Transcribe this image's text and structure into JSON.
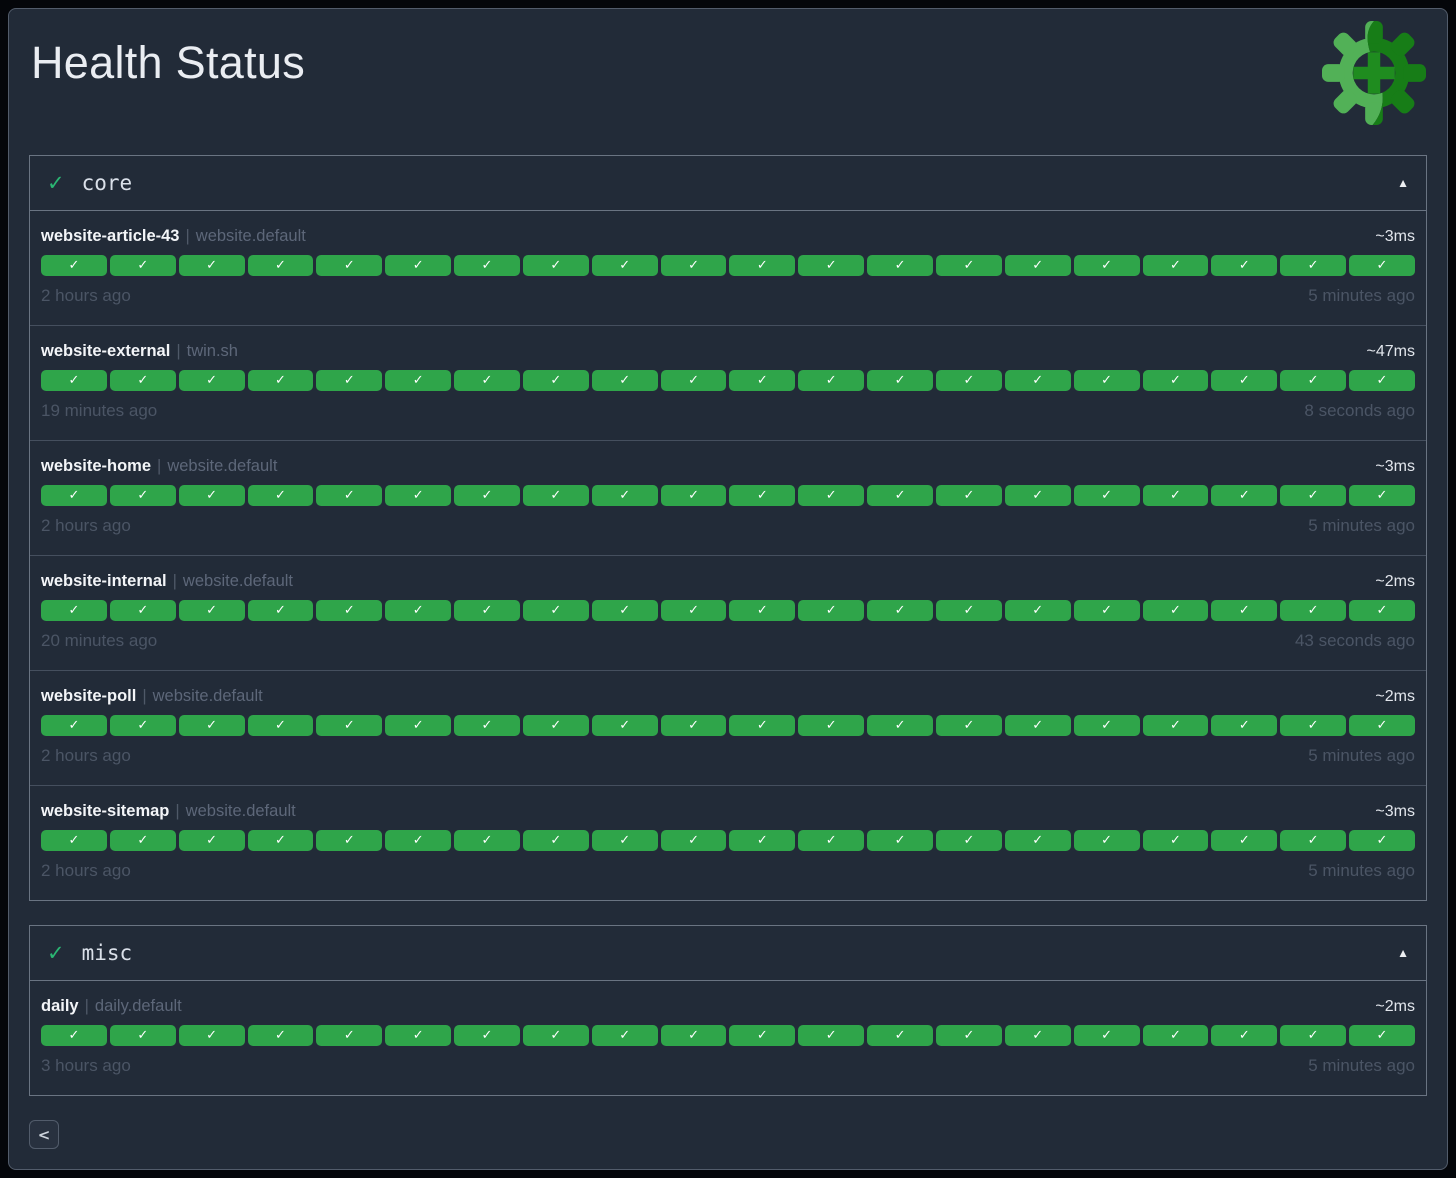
{
  "page": {
    "title": "Health Status"
  },
  "separator": "|",
  "colors": {
    "surface": "#222b38",
    "pill_green": "#2fa54a",
    "header_check_green": "#2bb673",
    "logo_light_green": "#52b157",
    "logo_dark_green": "#177d17",
    "logo_plus_green": "#1f8c1f"
  },
  "sections": [
    {
      "name": "core",
      "status_symbol": "✓",
      "collapse_symbol": "▲",
      "checks": [
        {
          "name": "website-article-43",
          "tag": "website.default",
          "duration": "~3ms",
          "oldest": "2 hours ago",
          "newest": "5 minutes ago",
          "history": {
            "count": 20,
            "status": "success",
            "symbol": "✓"
          }
        },
        {
          "name": "website-external",
          "tag": "twin.sh",
          "duration": "~47ms",
          "oldest": "19 minutes ago",
          "newest": "8 seconds ago",
          "history": {
            "count": 20,
            "status": "success",
            "symbol": "✓"
          }
        },
        {
          "name": "website-home",
          "tag": "website.default",
          "duration": "~3ms",
          "oldest": "2 hours ago",
          "newest": "5 minutes ago",
          "history": {
            "count": 20,
            "status": "success",
            "symbol": "✓"
          }
        },
        {
          "name": "website-internal",
          "tag": "website.default",
          "duration": "~2ms",
          "oldest": "20 minutes ago",
          "newest": "43 seconds ago",
          "history": {
            "count": 20,
            "status": "success",
            "symbol": "✓"
          }
        },
        {
          "name": "website-poll",
          "tag": "website.default",
          "duration": "~2ms",
          "oldest": "2 hours ago",
          "newest": "5 minutes ago",
          "history": {
            "count": 20,
            "status": "success",
            "symbol": "✓"
          }
        },
        {
          "name": "website-sitemap",
          "tag": "website.default",
          "duration": "~3ms",
          "oldest": "2 hours ago",
          "newest": "5 minutes ago",
          "history": {
            "count": 20,
            "status": "success",
            "symbol": "✓"
          }
        }
      ]
    },
    {
      "name": "misc",
      "status_symbol": "✓",
      "collapse_symbol": "▲",
      "checks": [
        {
          "name": "daily",
          "tag": "daily.default",
          "duration": "~2ms",
          "oldest": "3 hours ago",
          "newest": "5 minutes ago",
          "history": {
            "count": 20,
            "status": "success",
            "symbol": "✓"
          }
        }
      ]
    }
  ],
  "pager": {
    "prev_symbol": "<"
  }
}
